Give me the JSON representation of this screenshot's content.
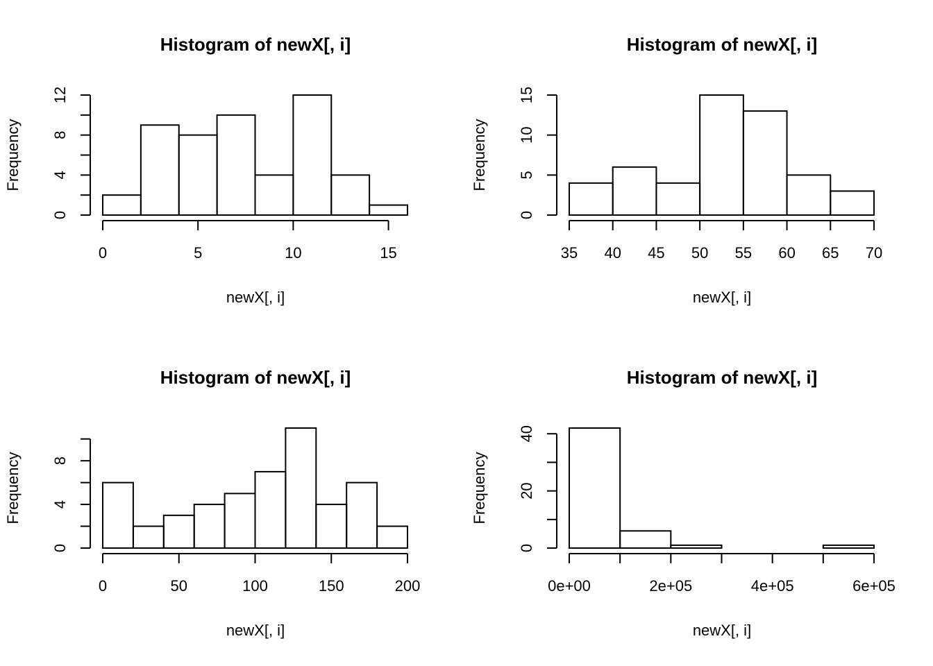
{
  "chart_data": [
    {
      "type": "histogram",
      "title": "Histogram of newX[, i]",
      "x_label": "newX[, i]",
      "y_label": "Frequency",
      "bins": [
        0,
        2,
        4,
        6,
        8,
        10,
        12,
        14,
        16
      ],
      "values": [
        2,
        9,
        8,
        10,
        4,
        12,
        4,
        1
      ],
      "xlim": [
        0,
        16
      ],
      "xticks": [
        0,
        5,
        10,
        15
      ],
      "ylim": [
        0,
        12
      ],
      "yticks": [
        0,
        4,
        8,
        12
      ],
      "yminor": [
        2,
        6,
        10
      ]
    },
    {
      "type": "histogram",
      "title": "Histogram of newX[, i]",
      "x_label": "newX[, i]",
      "y_label": "Frequency",
      "bins": [
        35,
        40,
        45,
        50,
        55,
        60,
        65,
        70
      ],
      "values": [
        4,
        6,
        4,
        15,
        13,
        5,
        3
      ],
      "xlim": [
        35,
        70
      ],
      "xticks": [
        35,
        40,
        45,
        50,
        55,
        60,
        65,
        70
      ],
      "ylim": [
        0,
        15
      ],
      "yticks": [
        0,
        5,
        10,
        15
      ]
    },
    {
      "type": "histogram",
      "title": "Histogram of newX[, i]",
      "x_label": "newX[, i]",
      "y_label": "Frequency",
      "bins": [
        0,
        20,
        40,
        60,
        80,
        100,
        120,
        140,
        160,
        180,
        200
      ],
      "values": [
        6,
        2,
        3,
        4,
        5,
        7,
        11,
        4,
        6,
        2
      ],
      "xlim": [
        0,
        200
      ],
      "xticks": [
        0,
        50,
        100,
        150,
        200
      ],
      "ylim": [
        0,
        11
      ],
      "yticks": [
        0,
        4,
        8
      ],
      "yminor": [
        2,
        6,
        10
      ]
    },
    {
      "type": "histogram",
      "title": "Histogram of newX[, i]",
      "x_label": "newX[, i]",
      "y_label": "Frequency",
      "bins": [
        0,
        100000,
        200000,
        300000,
        400000,
        500000,
        600000
      ],
      "values": [
        42,
        6,
        1,
        0,
        0,
        1
      ],
      "xlim": [
        0,
        600000
      ],
      "xticks": [
        {
          "value": 0,
          "label": "0e+00"
        },
        {
          "value": 200000,
          "label": "2e+05"
        },
        {
          "value": 400000,
          "label": "4e+05"
        },
        {
          "value": 600000,
          "label": "6e+05"
        }
      ],
      "xminor": [
        100000,
        300000,
        500000
      ],
      "ylim": [
        0,
        42
      ],
      "yticks": [
        0,
        20,
        40
      ],
      "yminor": [
        10,
        30
      ]
    }
  ]
}
